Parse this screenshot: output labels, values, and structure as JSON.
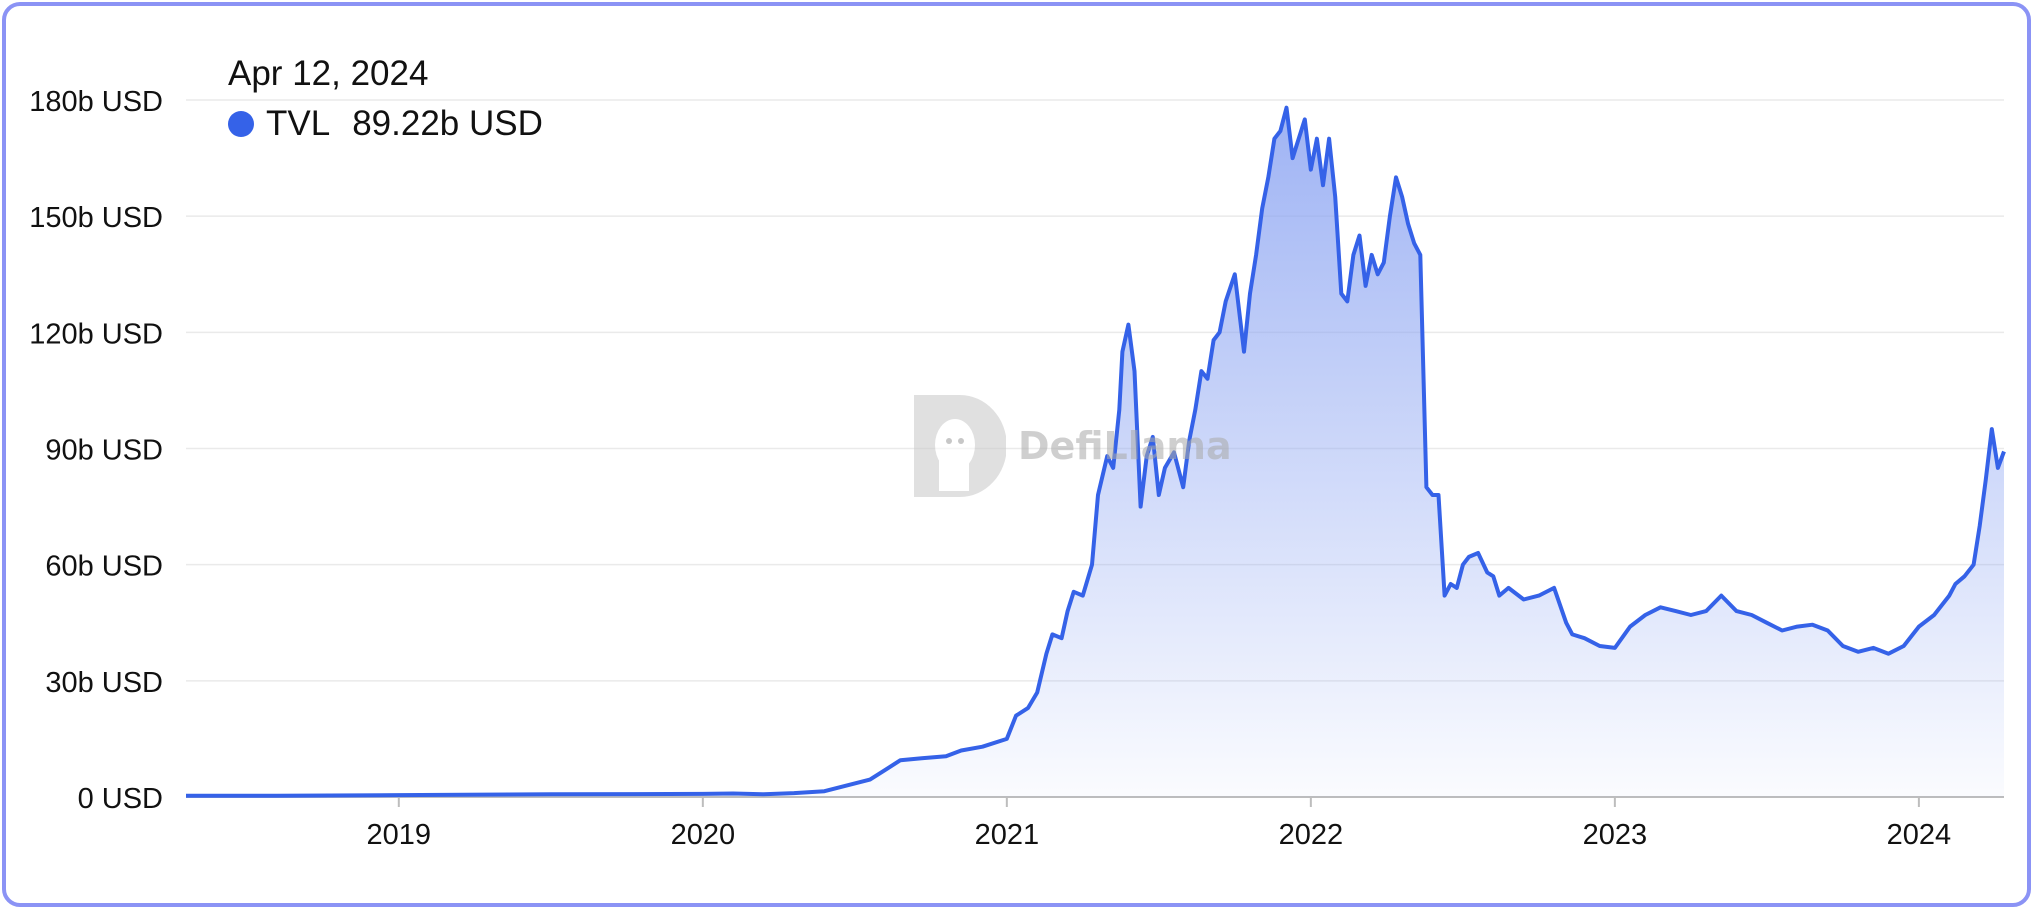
{
  "tooltip": {
    "date": "Apr 12, 2024",
    "series_name": "TVL",
    "value": "89.22b USD"
  },
  "watermark": {
    "text": "DefiLlama"
  },
  "colors": {
    "line": "#3562e8",
    "fill_top": "#8ea6f2",
    "grid": "#eaeaea",
    "axis": "#bdbdbd"
  },
  "chart_data": {
    "type": "area",
    "title": "",
    "xlabel": "",
    "ylabel": "",
    "xlim": [
      2018.3,
      2024.28
    ],
    "ylim": [
      0,
      180
    ],
    "y_ticks": [
      0,
      30,
      60,
      90,
      120,
      150,
      180
    ],
    "y_tick_labels": [
      "0 USD",
      "30b USD",
      "60b USD",
      "90b USD",
      "120b USD",
      "150b USD",
      "180b USD"
    ],
    "x_ticks": [
      2019,
      2020,
      2021,
      2022,
      2023,
      2024
    ],
    "x_tick_labels": [
      "2019",
      "2020",
      "2021",
      "2022",
      "2023",
      "2024"
    ],
    "grid": true,
    "series": [
      {
        "name": "TVL",
        "unit": "b USD",
        "x": [
          2018.3,
          2018.6,
          2019.0,
          2019.5,
          2020.0,
          2020.1,
          2020.2,
          2020.3,
          2020.4,
          2020.45,
          2020.55,
          2020.6,
          2020.65,
          2020.72,
          2020.8,
          2020.85,
          2020.92,
          2021.0,
          2021.03,
          2021.07,
          2021.1,
          2021.13,
          2021.15,
          2021.18,
          2021.2,
          2021.22,
          2021.25,
          2021.28,
          2021.3,
          2021.33,
          2021.35,
          2021.37,
          2021.38,
          2021.4,
          2021.42,
          2021.44,
          2021.46,
          2021.48,
          2021.5,
          2021.52,
          2021.55,
          2021.58,
          2021.6,
          2021.62,
          2021.64,
          2021.66,
          2021.68,
          2021.7,
          2021.72,
          2021.75,
          2021.78,
          2021.8,
          2021.82,
          2021.84,
          2021.86,
          2021.88,
          2021.9,
          2021.92,
          2021.94,
          2021.96,
          2021.98,
          2022.0,
          2022.02,
          2022.04,
          2022.06,
          2022.08,
          2022.1,
          2022.12,
          2022.14,
          2022.16,
          2022.18,
          2022.2,
          2022.22,
          2022.24,
          2022.26,
          2022.28,
          2022.3,
          2022.32,
          2022.34,
          2022.36,
          2022.38,
          2022.4,
          2022.42,
          2022.44,
          2022.46,
          2022.48,
          2022.5,
          2022.52,
          2022.55,
          2022.58,
          2022.6,
          2022.62,
          2022.65,
          2022.7,
          2022.75,
          2022.8,
          2022.84,
          2022.86,
          2022.9,
          2022.95,
          2023.0,
          2023.05,
          2023.1,
          2023.15,
          2023.2,
          2023.25,
          2023.3,
          2023.35,
          2023.4,
          2023.45,
          2023.5,
          2023.55,
          2023.6,
          2023.65,
          2023.7,
          2023.75,
          2023.8,
          2023.85,
          2023.9,
          2023.95,
          2024.0,
          2024.05,
          2024.08,
          2024.1,
          2024.12,
          2024.15,
          2024.18,
          2024.2,
          2024.22,
          2024.24,
          2024.26,
          2024.28
        ],
        "y": [
          0.3,
          0.3,
          0.5,
          0.7,
          0.8,
          0.9,
          0.7,
          1.0,
          1.5,
          2.5,
          4.5,
          7.0,
          9.5,
          10.0,
          10.5,
          12.0,
          13.0,
          15.0,
          21.0,
          23.0,
          27.0,
          37.0,
          42.0,
          41.0,
          48.0,
          53.0,
          52.0,
          60.0,
          78.0,
          88.0,
          85.0,
          100.0,
          115.0,
          122.0,
          110.0,
          75.0,
          88.0,
          93.0,
          78.0,
          85.0,
          89.0,
          80.0,
          92.0,
          100.0,
          110.0,
          108.0,
          118.0,
          120.0,
          128.0,
          135.0,
          115.0,
          130.0,
          140.0,
          152.0,
          160.0,
          170.0,
          172.0,
          178.0,
          165.0,
          170.0,
          175.0,
          162.0,
          170.0,
          158.0,
          170.0,
          155.0,
          130.0,
          128.0,
          140.0,
          145.0,
          132.0,
          140.0,
          135.0,
          138.0,
          150.0,
          160.0,
          155.0,
          148.0,
          143.0,
          140.0,
          80.0,
          78.0,
          78.0,
          52.0,
          55.0,
          54.0,
          60.0,
          62.0,
          63.0,
          58.0,
          57.0,
          52.0,
          54.0,
          51.0,
          52.0,
          54.0,
          45.0,
          42.0,
          41.0,
          39.0,
          38.5,
          44.0,
          47.0,
          49.0,
          48.0,
          47.0,
          48.0,
          52.0,
          48.0,
          47.0,
          45.0,
          43.0,
          44.0,
          44.5,
          43.0,
          39.0,
          37.5,
          38.5,
          37.0,
          39.0,
          44.0,
          47.0,
          50.0,
          52.0,
          55.0,
          57.0,
          60.0,
          70.0,
          82.0,
          95.0,
          85.0,
          89.22
        ]
      }
    ]
  }
}
